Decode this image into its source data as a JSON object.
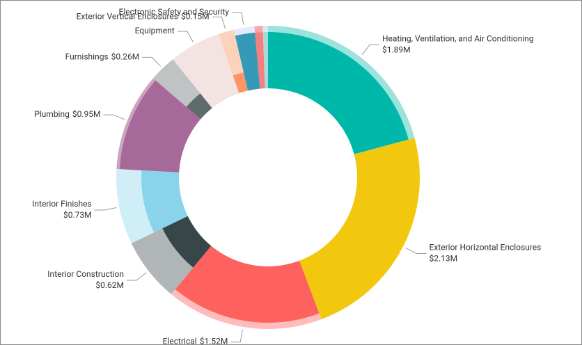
{
  "chart_data": {
    "type": "donut",
    "categories": [
      "Heating, Ventilation, and Air Conditioning",
      "Exterior Horizontal Enclosures",
      "Electrical",
      "Interior Construction",
      "Interior Finishes",
      "Plumbing",
      "Furnishings",
      "Equipment",
      "Exterior Vertical Enclosures",
      "Electronic Safety and Security",
      null,
      null
    ],
    "values": [
      1.89,
      2.13,
      1.52,
      0.62,
      0.73,
      0.95,
      0.26,
      0.5,
      0.15,
      0.2,
      0.08,
      0.05
    ],
    "value_labels": [
      "$1.89M",
      "$2.13M",
      "$1.52M",
      "$0.62M",
      "$0.73M",
      "$0.95M",
      "$0.26M",
      null,
      "$0.15M",
      null,
      null,
      null
    ],
    "fill_ratios": [
      0.9,
      1.0,
      0.9,
      0.45,
      0.6,
      0.95,
      0.3,
      0,
      0.3,
      0.9,
      0.9,
      0.9
    ],
    "colors": [
      "#00b8a9",
      "#f2c80f",
      "#fd625e",
      "#374649",
      "#8ad4eb",
      "#a66999",
      "#5f6b6d",
      "#f0dcdc",
      "#fe9666",
      "#3599b8",
      "#f47f7f",
      "#a8dada"
    ],
    "light_colors": [
      "#9ce3dc",
      "#f7e08a",
      "#ffbcbc",
      "#b0b5b6",
      "#d0eef8",
      "#c9a3c0",
      "#bfc3c3",
      "#f3e3e3",
      "#fdd2bc",
      "#e6e9fb",
      "#f7a6a6",
      "#cfeded"
    ]
  }
}
